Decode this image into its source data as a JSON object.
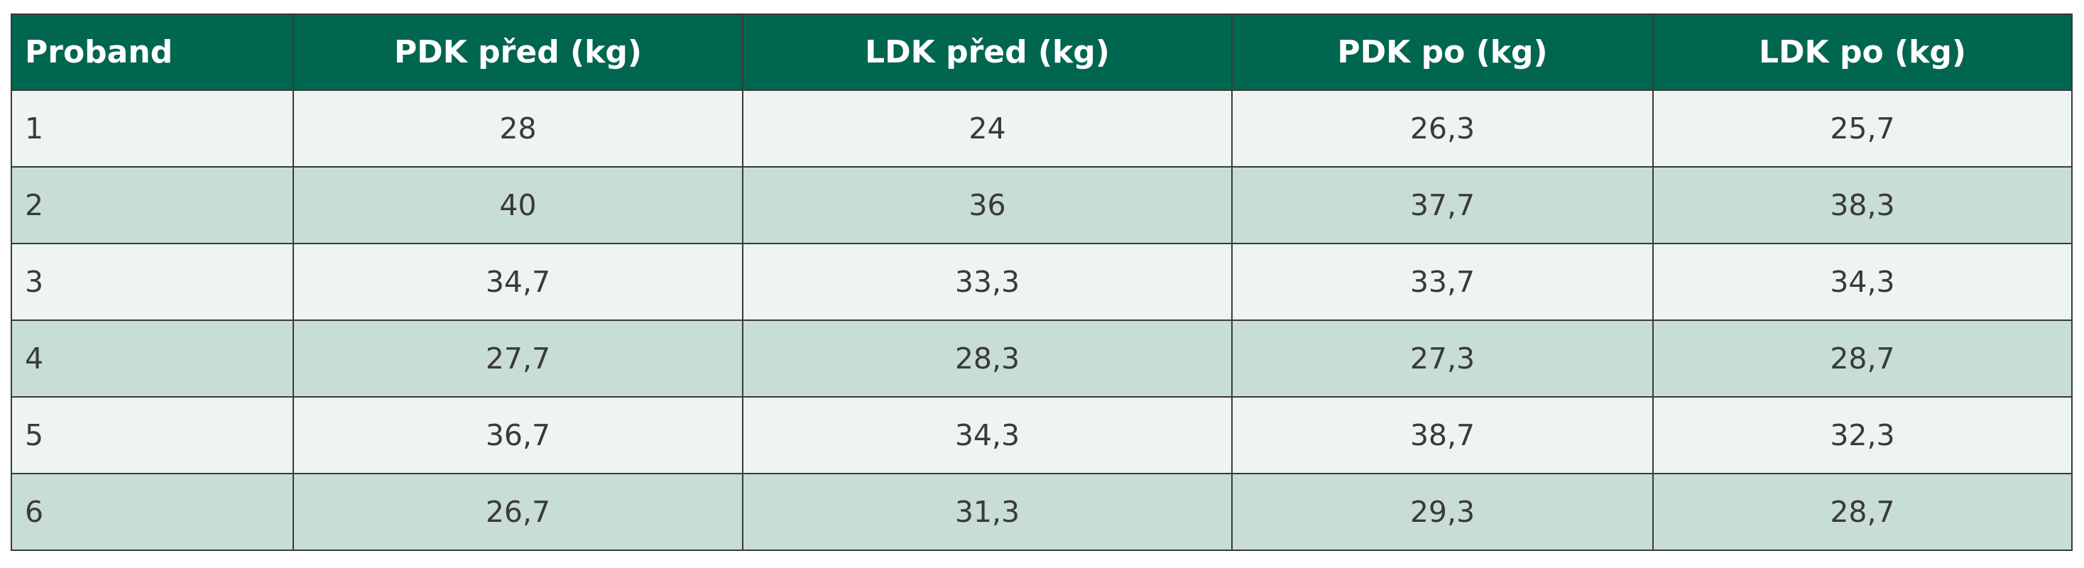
{
  "table": {
    "header": [
      "Proband",
      "PDK před (kg)",
      "LDK před (kg)",
      "PDK po (kg)",
      "LDK po (kg)"
    ],
    "rows": [
      [
        "1",
        "28",
        "24",
        "26,3",
        "25,7"
      ],
      [
        "2",
        "40",
        "36",
        "37,7",
        "38,3"
      ],
      [
        "3",
        "34,7",
        "33,3",
        "33,7",
        "34,3"
      ],
      [
        "4",
        "27,7",
        "28,3",
        "27,3",
        "28,7"
      ],
      [
        "5",
        "36,7",
        "34,3",
        "38,7",
        "32,3"
      ],
      [
        "6",
        "26,7",
        "31,3",
        "29,3",
        "28,7"
      ]
    ]
  }
}
